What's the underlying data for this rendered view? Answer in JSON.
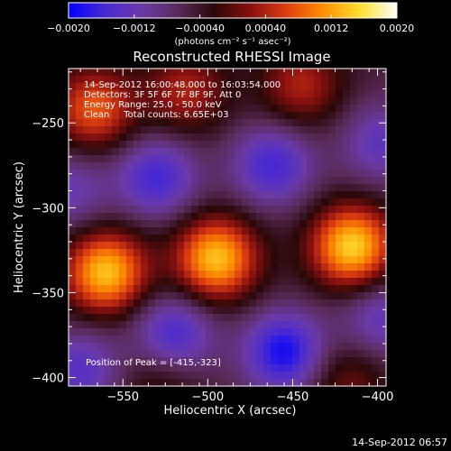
{
  "chart_data": {
    "type": "heatmap",
    "title": "Reconstructed RHESSI Image",
    "xlabel": "Heliocentric X (arcsec)",
    "ylabel": "Heliocentric Y (arcsec)",
    "xlim": [
      -582,
      -395
    ],
    "ylim": [
      -405,
      -218
    ],
    "x_ticks": [
      -550,
      -500,
      -450,
      -400
    ],
    "y_ticks": [
      -400,
      -350,
      -300,
      -250
    ],
    "x_tick_labels": [
      "−550",
      "−500",
      "−450",
      "−400"
    ],
    "y_tick_labels": [
      "−400",
      "−350",
      "−300",
      "−250"
    ],
    "colorbar": {
      "min": -0.002,
      "max": 0.002,
      "ticks": [
        -0.002,
        -0.0012,
        -0.0004,
        0.0004,
        0.0012,
        0.002
      ],
      "tick_labels": [
        "−0.0020",
        "−0.0012",
        "−0.00040",
        "0.00040",
        "0.0012",
        "0.0020"
      ],
      "units": "(photons cm⁻² s⁻¹ asec⁻²)",
      "stops": [
        "#0000ff",
        "#4a2ad0",
        "#6a3aa8",
        "#5a2a5a",
        "#2a0808",
        "#8a1010",
        "#e04010",
        "#ff9000",
        "#ffe030",
        "#ffffff"
      ]
    },
    "annotations": [
      "14-Sep-2012 16:00:48.000 to 16:03:54.000",
      "Detectors: 3F 5F 6F 7F 8F 9F, Att 0",
      "Energy Range: 25.0 - 50.0 keV",
      "Clean     Total counts: 6.65E+03"
    ],
    "peak_label": "Position of Peak = [-415,-323]",
    "peak_position": [
      -415,
      -323
    ],
    "peak_value": 0.002,
    "sources": [
      {
        "kind": "positive",
        "x": -560,
        "y": -338,
        "amplitude": 0.0019
      },
      {
        "kind": "positive",
        "x": -495,
        "y": -330,
        "amplitude": 0.0019
      },
      {
        "kind": "positive",
        "x": -415,
        "y": -323,
        "amplitude": 0.002
      },
      {
        "kind": "positive",
        "x": -567,
        "y": -242,
        "amplitude": 0.0013
      },
      {
        "kind": "positive",
        "x": -513,
        "y": -232,
        "amplitude": 0.0009
      },
      {
        "kind": "positive",
        "x": -445,
        "y": -228,
        "amplitude": 0.0009
      },
      {
        "kind": "positive",
        "x": -418,
        "y": -402,
        "amplitude": 0.0006
      },
      {
        "kind": "positive",
        "x": -528,
        "y": -402,
        "amplitude": 0.0005
      },
      {
        "kind": "negative",
        "x": -530,
        "y": -282,
        "amplitude": -0.0011
      },
      {
        "kind": "negative",
        "x": -462,
        "y": -275,
        "amplitude": -0.0011
      },
      {
        "kind": "negative",
        "x": -582,
        "y": -290,
        "amplitude": -0.0007
      },
      {
        "kind": "negative",
        "x": -520,
        "y": -375,
        "amplitude": -0.0011
      },
      {
        "kind": "negative",
        "x": -455,
        "y": -385,
        "amplitude": -0.0014
      },
      {
        "kind": "negative",
        "x": -575,
        "y": -395,
        "amplitude": -0.0009
      },
      {
        "kind": "negative",
        "x": -398,
        "y": -365,
        "amplitude": -0.0008
      },
      {
        "kind": "negative",
        "x": -398,
        "y": -262,
        "amplitude": -0.0008
      }
    ]
  },
  "footer": {
    "timestamp": "14-Sep-2012 06:57"
  }
}
